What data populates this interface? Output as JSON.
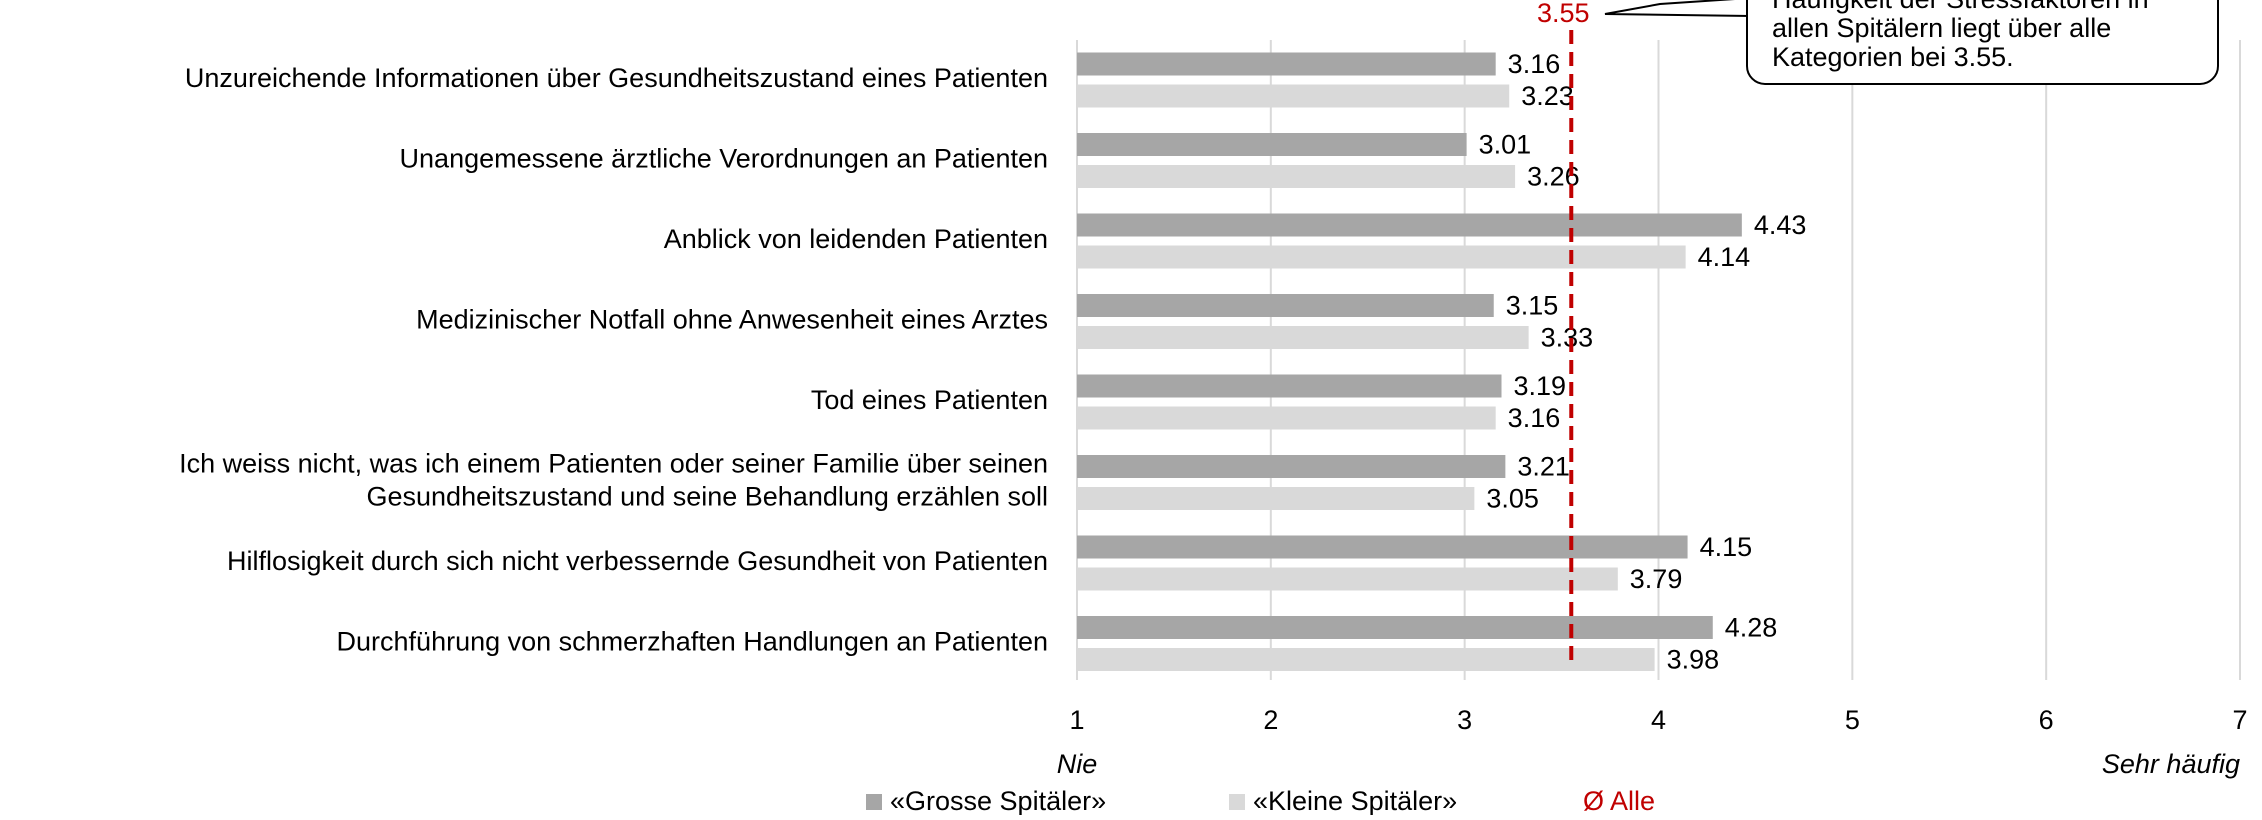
{
  "chart_data": {
    "type": "bar",
    "orientation": "horizontal",
    "categories": [
      "Unzureichende Informationen über Gesundheitszustand eines Patienten",
      "Unangemessene ärztliche Verordnungen an Patienten",
      "Anblick von leidenden Patienten",
      "Medizinischer Notfall ohne Anwesenheit eines Arztes",
      "Tod eines Patienten",
      [
        "Ich weiss nicht, was ich einem Patienten oder seiner Familie über seinen",
        "Gesundheitszustand und seine Behandlung erzählen soll"
      ],
      "Hilflosigkeit durch sich nicht verbessernde Gesundheit von Patienten",
      "Durchführung von schmerzhaften Handlungen an Patienten"
    ],
    "series": [
      {
        "name": "«Grosse Spitäler»",
        "color": "#a6a6a6",
        "values": [
          3.16,
          3.01,
          4.43,
          3.15,
          3.19,
          3.21,
          4.15,
          4.28
        ]
      },
      {
        "name": "«Kleine Spitäler»",
        "color": "#d9d9d9",
        "values": [
          3.23,
          3.26,
          4.14,
          3.33,
          3.16,
          3.05,
          3.79,
          3.98
        ]
      }
    ],
    "average": {
      "name": "Ø Alle",
      "value": 3.55,
      "color": "#c00000"
    },
    "annotation": [
      "Häufigkeit der Stressfaktoren in",
      "allen Spitälern liegt über alle",
      "Kategorien bei 3.55."
    ],
    "xlim": [
      1,
      7
    ],
    "xticks": [
      1,
      2,
      3,
      4,
      5,
      6,
      7
    ],
    "xaxis_min_label": "Nie",
    "xaxis_max_label": "Sehr häufig",
    "grid": true
  }
}
